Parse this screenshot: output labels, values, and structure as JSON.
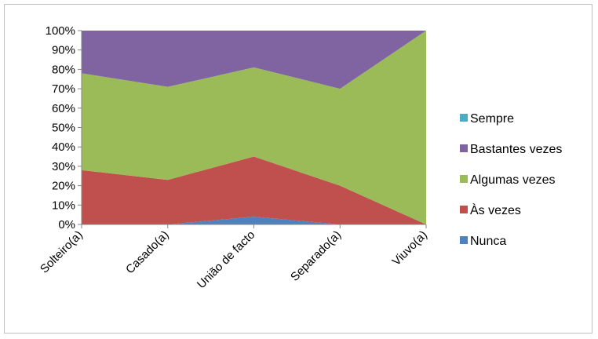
{
  "chart_data": {
    "type": "area",
    "stacked": "percent",
    "title": "",
    "xlabel": "",
    "ylabel": "",
    "categories": [
      "Solteiro(a)",
      "Casado(a)",
      "União de facto",
      "Separado(a)",
      "Viuvo(a)"
    ],
    "y_ticks": [
      "0%",
      "10%",
      "20%",
      "30%",
      "40%",
      "50%",
      "60%",
      "70%",
      "80%",
      "90%",
      "100%"
    ],
    "ylim": [
      0,
      100
    ],
    "legend_position": "right",
    "series": [
      {
        "name": "Nunca",
        "color": "#4f81bd",
        "values": [
          0,
          0,
          4,
          0,
          0
        ]
      },
      {
        "name": "Às vezes",
        "color": "#c0504d",
        "values": [
          28,
          23,
          31,
          20,
          0
        ]
      },
      {
        "name": "Algumas vezes",
        "color": "#9bbb59",
        "values": [
          50,
          48,
          46,
          50,
          100
        ]
      },
      {
        "name": "Bastantes vezes",
        "color": "#8064a2",
        "values": [
          22,
          29,
          19,
          30,
          0
        ]
      },
      {
        "name": "Sempre",
        "color": "#4bacc6",
        "values": [
          0,
          0,
          0,
          0,
          0
        ]
      }
    ],
    "legend_order": [
      "Sempre",
      "Bastantes vezes",
      "Algumas vezes",
      "Às vezes",
      "Nunca"
    ]
  }
}
